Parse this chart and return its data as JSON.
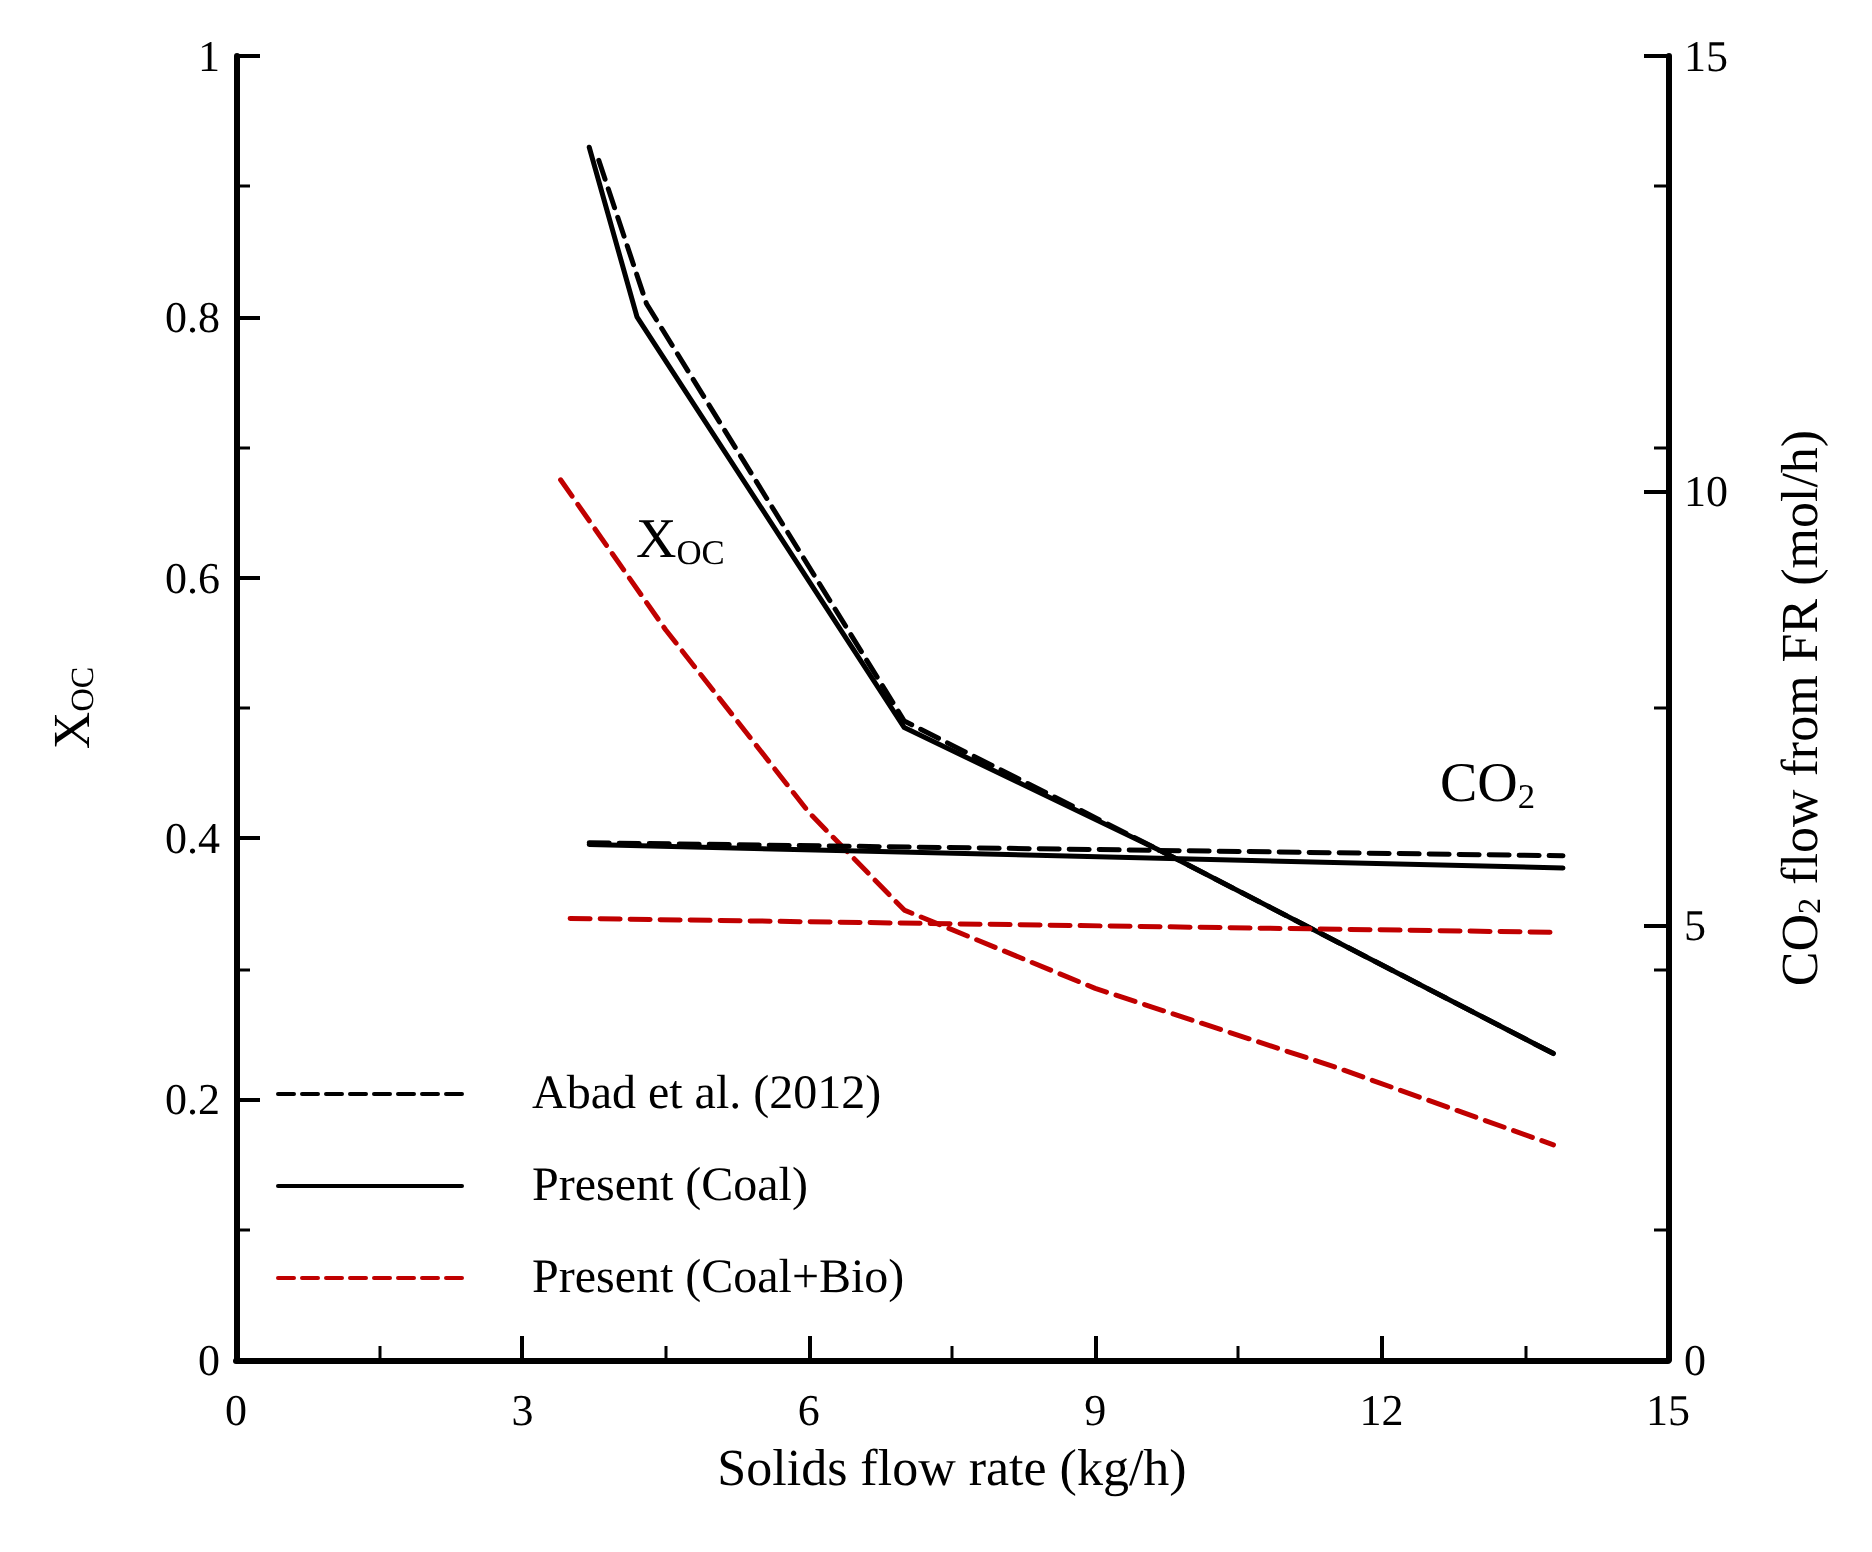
{
  "chart_data": {
    "type": "line",
    "xlabel": "Solids flow rate (kg/h)",
    "ylabel": "X$_{OC}$",
    "y2label": "CO$_{2}$ flow from FR (mol/h)",
    "xlim": [
      0,
      15
    ],
    "xticks": [
      0,
      3,
      6,
      9,
      12,
      15
    ],
    "ylim": [
      0,
      1
    ],
    "yticks": [
      0,
      0.2,
      0.4,
      0.6,
      0.8,
      1
    ],
    "y2lim": [
      0,
      15
    ],
    "y2ticks": [
      0,
      5,
      10,
      15
    ],
    "grid": false,
    "legend": "bottom left",
    "marker": "none",
    "annotations": [
      "X$_{OC}$",
      "CO$_{2}$"
    ],
    "series": [
      {
        "name": "Abad et al. (2012)",
        "color": "#000000",
        "line_style": "dashed",
        "x": [
          3.8,
          4.3,
          7.0,
          9.7,
          13.8
        ],
        "values": [
          0.92,
          0.81,
          0.49,
          0.39,
          0.235
        ]
      },
      {
        "name": "Present (Coal)",
        "color": "#000000",
        "line_style": "solid",
        "x": [
          3.7,
          4.2,
          7.0,
          9.7,
          13.8
        ],
        "values": [
          0.93,
          0.8,
          0.485,
          0.39,
          0.235
        ]
      },
      {
        "name": "Present (Coal+Bio)",
        "color": "#c00000",
        "line_style": "dashed",
        "x": [
          3.4,
          4.5,
          6.0,
          7.0,
          9.0,
          11.5,
          13.8
        ],
        "values": [
          0.675,
          0.56,
          0.42,
          0.345,
          0.285,
          0.225,
          0.165
        ]
      },
      {
        "color": "#000000",
        "line_style": "dashed",
        "axis": "y2",
        "x": [
          3.7,
          13.9
        ],
        "values": [
          5.95,
          5.8
        ]
      },
      {
        "color": "#000000",
        "line_style": "solid",
        "axis": "y2",
        "x": [
          3.7,
          13.9
        ],
        "values": [
          5.93,
          5.66
        ]
      },
      {
        "color": "#c00000",
        "line_style": "dashed",
        "axis": "y2",
        "x": [
          3.5,
          13.8
        ],
        "values": [
          5.08,
          4.92
        ]
      }
    ]
  }
}
